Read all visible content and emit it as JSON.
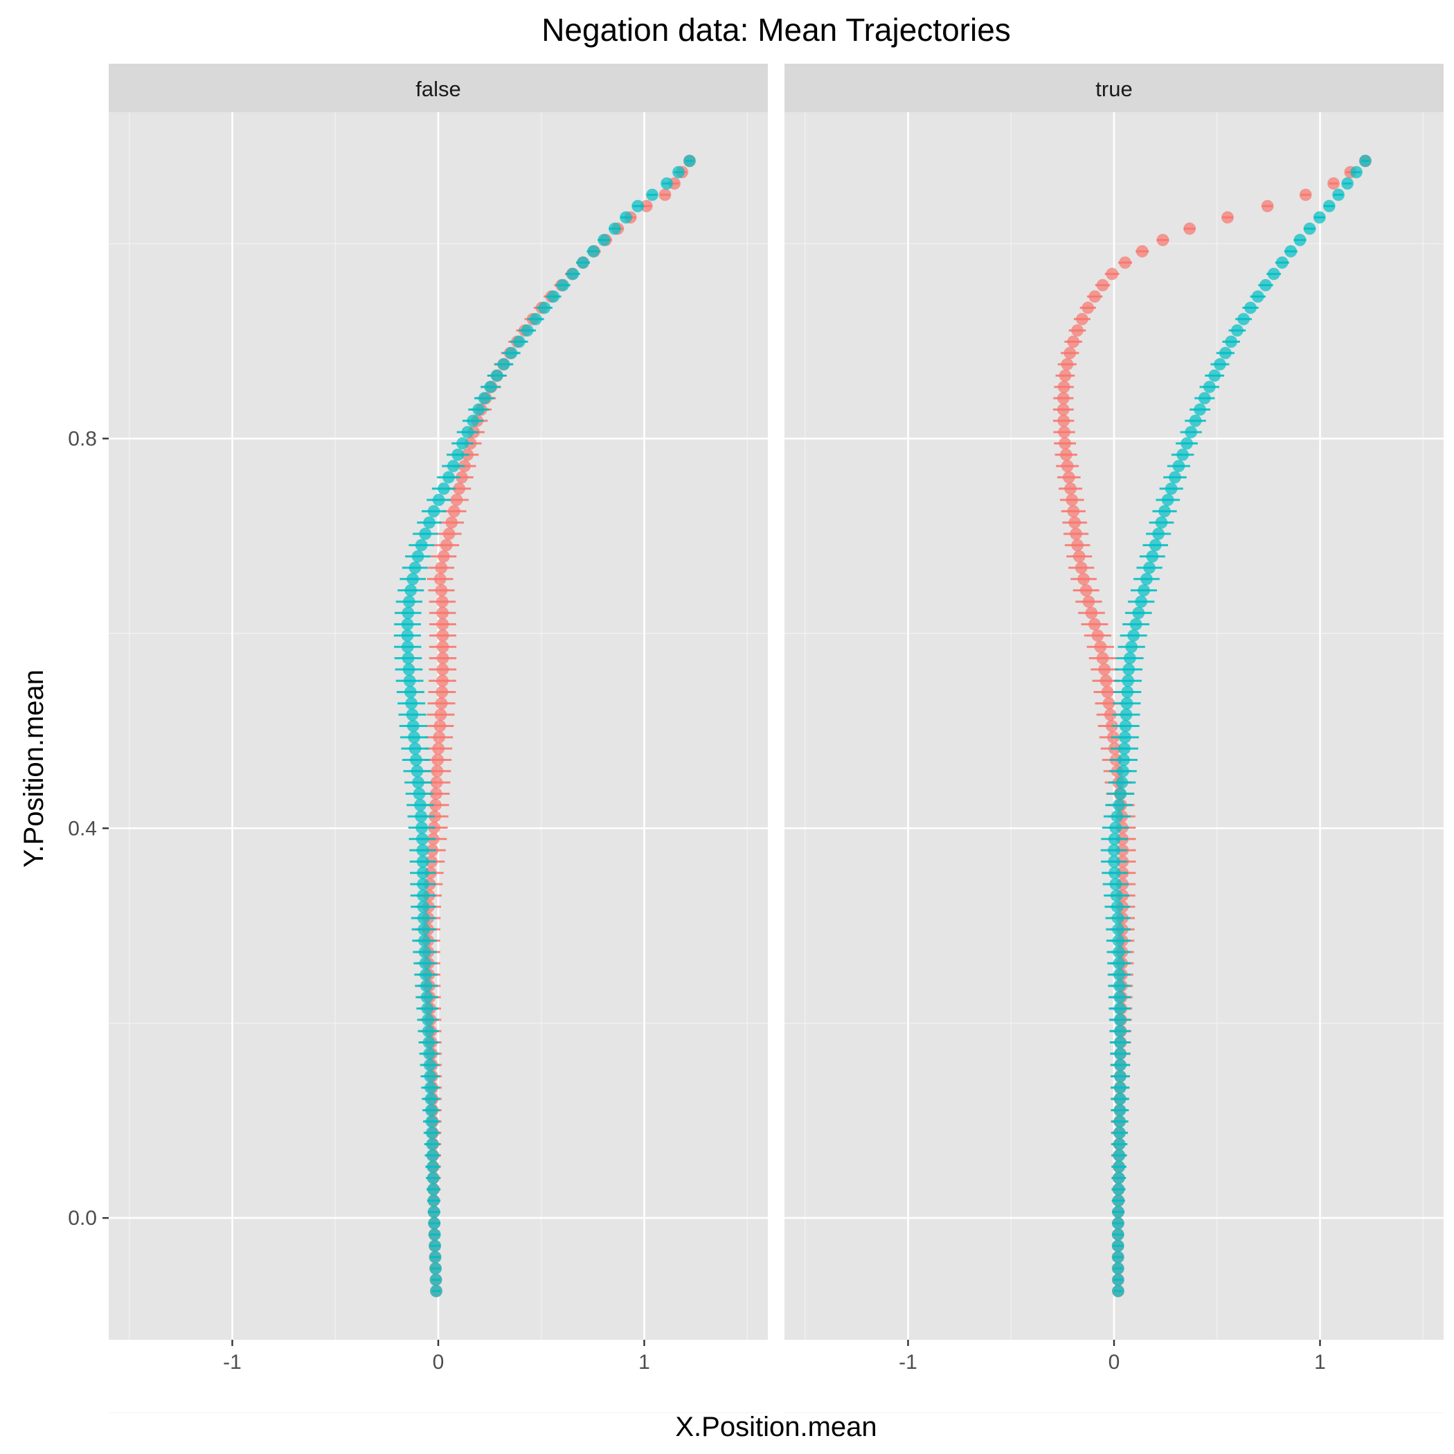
{
  "chart_data": {
    "type": "scatter",
    "title": "Negation data: Mean Trajectories",
    "xlabel": "X.Position.mean",
    "ylabel": "Y.Position.mean",
    "xlim": [
      -1.6,
      1.6
    ],
    "ylim": [
      -0.125,
      1.135
    ],
    "x_ticks": [
      {
        "value": -1,
        "label": "-1"
      },
      {
        "value": 0,
        "label": "0"
      },
      {
        "value": 1,
        "label": "1"
      }
    ],
    "y_ticks": [
      {
        "value": 0.0,
        "label": "0.0"
      },
      {
        "value": 0.4,
        "label": "0.4"
      },
      {
        "value": 0.8,
        "label": "0.8"
      }
    ],
    "grid": true,
    "legend": "none",
    "colors": {
      "red_series": "#F8766D",
      "teal_series": "#00BFC4"
    },
    "panels": [
      {
        "label": "false",
        "series": [
          {
            "color": "#F8766D",
            "start": [
              -0.01,
              -0.075
            ],
            "end": [
              1.22,
              1.085
            ],
            "points": [
              [
                -0.01,
                -0.075
              ],
              [
                -0.02,
                0.0
              ],
              [
                -0.03,
                0.15
              ],
              [
                -0.05,
                0.3
              ],
              [
                -0.02,
                0.4
              ],
              [
                0.0,
                0.48
              ],
              [
                0.02,
                0.55
              ],
              [
                0.02,
                0.63
              ],
              [
                0.01,
                0.66
              ],
              [
                0.05,
                0.7
              ],
              [
                0.15,
                0.79
              ],
              [
                0.25,
                0.85
              ],
              [
                0.45,
                0.92
              ],
              [
                0.7,
                0.98
              ],
              [
                0.95,
                1.03
              ],
              [
                1.1,
                1.05
              ],
              [
                1.22,
                1.085
              ]
            ]
          },
          {
            "color": "#00BFC4",
            "start": [
              -0.01,
              -0.075
            ],
            "end": [
              1.22,
              1.085
            ],
            "points": [
              [
                -0.01,
                -0.075
              ],
              [
                -0.02,
                0.0
              ],
              [
                -0.04,
                0.15
              ],
              [
                -0.07,
                0.3
              ],
              [
                -0.08,
                0.4
              ],
              [
                -0.12,
                0.5
              ],
              [
                -0.15,
                0.6
              ],
              [
                -0.12,
                0.66
              ],
              [
                -0.05,
                0.71
              ],
              [
                0.05,
                0.76
              ],
              [
                0.15,
                0.81
              ],
              [
                0.3,
                0.87
              ],
              [
                0.5,
                0.93
              ],
              [
                0.7,
                0.98
              ],
              [
                0.95,
                1.035
              ],
              [
                1.1,
                1.06
              ],
              [
                1.22,
                1.085
              ]
            ]
          }
        ]
      },
      {
        "label": "true",
        "series": [
          {
            "color": "#F8766D",
            "start": [
              0.02,
              -0.075
            ],
            "end": [
              1.22,
              1.085
            ],
            "points": [
              [
                0.02,
                -0.075
              ],
              [
                0.02,
                0.0
              ],
              [
                0.03,
                0.15
              ],
              [
                0.04,
                0.3
              ],
              [
                0.04,
                0.4
              ],
              [
                0.02,
                0.45
              ],
              [
                -0.02,
                0.52
              ],
              [
                -0.06,
                0.58
              ],
              [
                -0.12,
                0.63
              ],
              [
                -0.17,
                0.68
              ],
              [
                -0.2,
                0.73
              ],
              [
                -0.24,
                0.8
              ],
              [
                -0.24,
                0.86
              ],
              [
                -0.18,
                0.91
              ],
              [
                -0.08,
                0.95
              ],
              [
                0.05,
                0.98
              ],
              [
                0.3,
                1.01
              ],
              [
                0.6,
                1.03
              ],
              [
                0.85,
                1.045
              ],
              [
                1.05,
                1.06
              ],
              [
                1.22,
                1.085
              ]
            ]
          },
          {
            "color": "#00BFC4",
            "start": [
              0.02,
              -0.075
            ],
            "end": [
              1.22,
              1.085
            ],
            "points": [
              [
                0.02,
                -0.075
              ],
              [
                0.02,
                0.0
              ],
              [
                0.03,
                0.15
              ],
              [
                0.02,
                0.3
              ],
              [
                0.0,
                0.38
              ],
              [
                0.04,
                0.45
              ],
              [
                0.06,
                0.52
              ],
              [
                0.08,
                0.58
              ],
              [
                0.14,
                0.64
              ],
              [
                0.2,
                0.69
              ],
              [
                0.28,
                0.75
              ],
              [
                0.38,
                0.81
              ],
              [
                0.5,
                0.87
              ],
              [
                0.65,
                0.93
              ],
              [
                0.85,
                0.99
              ],
              [
                1.05,
                1.04
              ],
              [
                1.22,
                1.085
              ]
            ]
          }
        ]
      }
    ]
  }
}
